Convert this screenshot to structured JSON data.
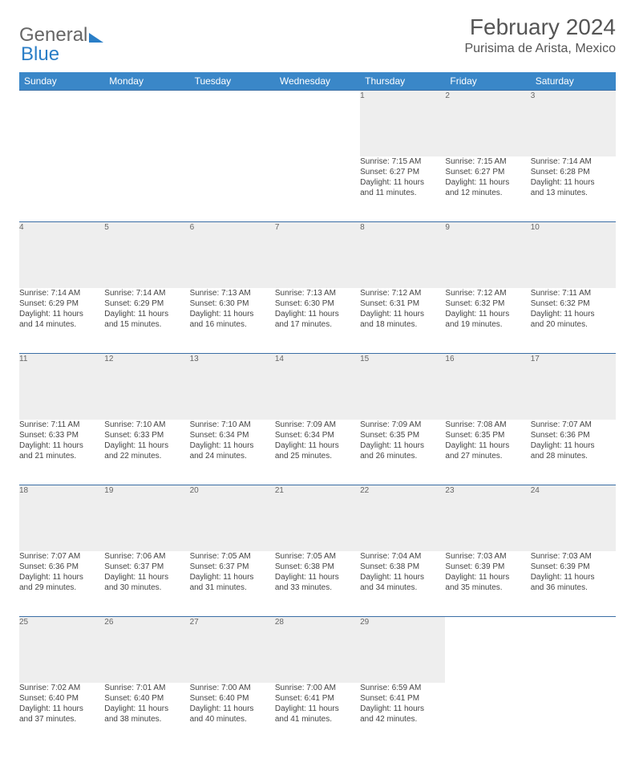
{
  "logo": {
    "part1": "General",
    "part2": "Blue"
  },
  "header": {
    "title": "February 2024",
    "location": "Purisima de Arista, Mexico"
  },
  "weekdays": [
    "Sunday",
    "Monday",
    "Tuesday",
    "Wednesday",
    "Thursday",
    "Friday",
    "Saturday"
  ],
  "colors": {
    "header_bg": "#3a87c8",
    "rule": "#3a6ea5",
    "daynum_bg": "#eeeeee"
  },
  "weeks": [
    {
      "days": [
        null,
        null,
        null,
        null,
        {
          "n": "1",
          "sr": "Sunrise: 7:15 AM",
          "ss": "Sunset: 6:27 PM",
          "d1": "Daylight: 11 hours",
          "d2": "and 11 minutes."
        },
        {
          "n": "2",
          "sr": "Sunrise: 7:15 AM",
          "ss": "Sunset: 6:27 PM",
          "d1": "Daylight: 11 hours",
          "d2": "and 12 minutes."
        },
        {
          "n": "3",
          "sr": "Sunrise: 7:14 AM",
          "ss": "Sunset: 6:28 PM",
          "d1": "Daylight: 11 hours",
          "d2": "and 13 minutes."
        }
      ]
    },
    {
      "days": [
        {
          "n": "4",
          "sr": "Sunrise: 7:14 AM",
          "ss": "Sunset: 6:29 PM",
          "d1": "Daylight: 11 hours",
          "d2": "and 14 minutes."
        },
        {
          "n": "5",
          "sr": "Sunrise: 7:14 AM",
          "ss": "Sunset: 6:29 PM",
          "d1": "Daylight: 11 hours",
          "d2": "and 15 minutes."
        },
        {
          "n": "6",
          "sr": "Sunrise: 7:13 AM",
          "ss": "Sunset: 6:30 PM",
          "d1": "Daylight: 11 hours",
          "d2": "and 16 minutes."
        },
        {
          "n": "7",
          "sr": "Sunrise: 7:13 AM",
          "ss": "Sunset: 6:30 PM",
          "d1": "Daylight: 11 hours",
          "d2": "and 17 minutes."
        },
        {
          "n": "8",
          "sr": "Sunrise: 7:12 AM",
          "ss": "Sunset: 6:31 PM",
          "d1": "Daylight: 11 hours",
          "d2": "and 18 minutes."
        },
        {
          "n": "9",
          "sr": "Sunrise: 7:12 AM",
          "ss": "Sunset: 6:32 PM",
          "d1": "Daylight: 11 hours",
          "d2": "and 19 minutes."
        },
        {
          "n": "10",
          "sr": "Sunrise: 7:11 AM",
          "ss": "Sunset: 6:32 PM",
          "d1": "Daylight: 11 hours",
          "d2": "and 20 minutes."
        }
      ]
    },
    {
      "days": [
        {
          "n": "11",
          "sr": "Sunrise: 7:11 AM",
          "ss": "Sunset: 6:33 PM",
          "d1": "Daylight: 11 hours",
          "d2": "and 21 minutes."
        },
        {
          "n": "12",
          "sr": "Sunrise: 7:10 AM",
          "ss": "Sunset: 6:33 PM",
          "d1": "Daylight: 11 hours",
          "d2": "and 22 minutes."
        },
        {
          "n": "13",
          "sr": "Sunrise: 7:10 AM",
          "ss": "Sunset: 6:34 PM",
          "d1": "Daylight: 11 hours",
          "d2": "and 24 minutes."
        },
        {
          "n": "14",
          "sr": "Sunrise: 7:09 AM",
          "ss": "Sunset: 6:34 PM",
          "d1": "Daylight: 11 hours",
          "d2": "and 25 minutes."
        },
        {
          "n": "15",
          "sr": "Sunrise: 7:09 AM",
          "ss": "Sunset: 6:35 PM",
          "d1": "Daylight: 11 hours",
          "d2": "and 26 minutes."
        },
        {
          "n": "16",
          "sr": "Sunrise: 7:08 AM",
          "ss": "Sunset: 6:35 PM",
          "d1": "Daylight: 11 hours",
          "d2": "and 27 minutes."
        },
        {
          "n": "17",
          "sr": "Sunrise: 7:07 AM",
          "ss": "Sunset: 6:36 PM",
          "d1": "Daylight: 11 hours",
          "d2": "and 28 minutes."
        }
      ]
    },
    {
      "days": [
        {
          "n": "18",
          "sr": "Sunrise: 7:07 AM",
          "ss": "Sunset: 6:36 PM",
          "d1": "Daylight: 11 hours",
          "d2": "and 29 minutes."
        },
        {
          "n": "19",
          "sr": "Sunrise: 7:06 AM",
          "ss": "Sunset: 6:37 PM",
          "d1": "Daylight: 11 hours",
          "d2": "and 30 minutes."
        },
        {
          "n": "20",
          "sr": "Sunrise: 7:05 AM",
          "ss": "Sunset: 6:37 PM",
          "d1": "Daylight: 11 hours",
          "d2": "and 31 minutes."
        },
        {
          "n": "21",
          "sr": "Sunrise: 7:05 AM",
          "ss": "Sunset: 6:38 PM",
          "d1": "Daylight: 11 hours",
          "d2": "and 33 minutes."
        },
        {
          "n": "22",
          "sr": "Sunrise: 7:04 AM",
          "ss": "Sunset: 6:38 PM",
          "d1": "Daylight: 11 hours",
          "d2": "and 34 minutes."
        },
        {
          "n": "23",
          "sr": "Sunrise: 7:03 AM",
          "ss": "Sunset: 6:39 PM",
          "d1": "Daylight: 11 hours",
          "d2": "and 35 minutes."
        },
        {
          "n": "24",
          "sr": "Sunrise: 7:03 AM",
          "ss": "Sunset: 6:39 PM",
          "d1": "Daylight: 11 hours",
          "d2": "and 36 minutes."
        }
      ]
    },
    {
      "days": [
        {
          "n": "25",
          "sr": "Sunrise: 7:02 AM",
          "ss": "Sunset: 6:40 PM",
          "d1": "Daylight: 11 hours",
          "d2": "and 37 minutes."
        },
        {
          "n": "26",
          "sr": "Sunrise: 7:01 AM",
          "ss": "Sunset: 6:40 PM",
          "d1": "Daylight: 11 hours",
          "d2": "and 38 minutes."
        },
        {
          "n": "27",
          "sr": "Sunrise: 7:00 AM",
          "ss": "Sunset: 6:40 PM",
          "d1": "Daylight: 11 hours",
          "d2": "and 40 minutes."
        },
        {
          "n": "28",
          "sr": "Sunrise: 7:00 AM",
          "ss": "Sunset: 6:41 PM",
          "d1": "Daylight: 11 hours",
          "d2": "and 41 minutes."
        },
        {
          "n": "29",
          "sr": "Sunrise: 6:59 AM",
          "ss": "Sunset: 6:41 PM",
          "d1": "Daylight: 11 hours",
          "d2": "and 42 minutes."
        },
        null,
        null
      ]
    }
  ]
}
